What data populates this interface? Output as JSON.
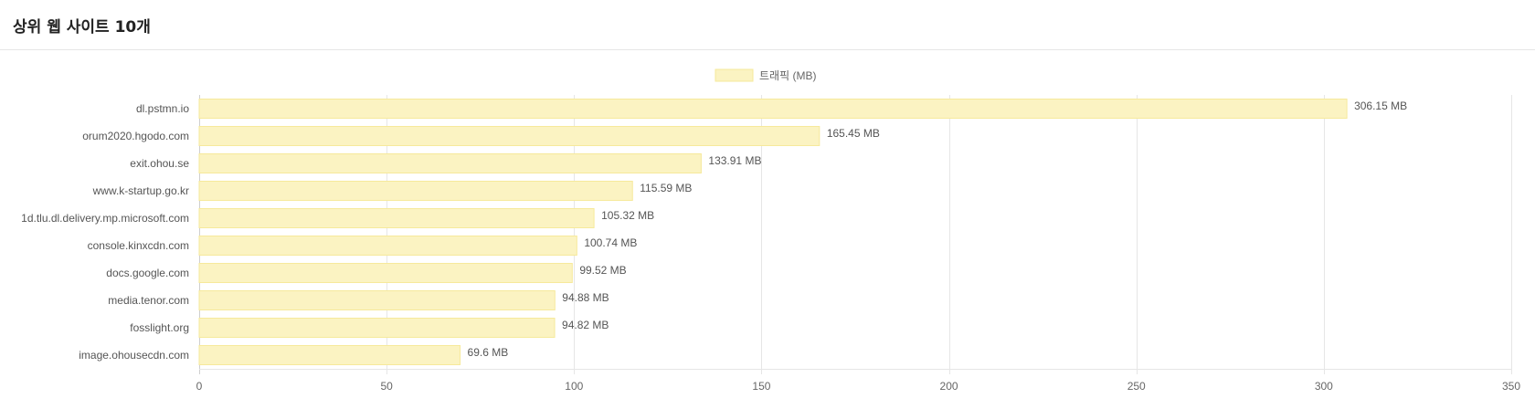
{
  "panel": {
    "title": "상위 웹 사이트 10개"
  },
  "chart_data": {
    "type": "bar",
    "orientation": "horizontal",
    "categories": [
      "dl.pstmn.io",
      "orum2020.hgodo.com",
      "exit.ohou.se",
      "www.k-startup.go.kr",
      "1d.tlu.dl.delivery.mp.microsoft.com",
      "console.kinxcdn.com",
      "docs.google.com",
      "media.tenor.com",
      "fosslight.org",
      "image.ohousecdn.com"
    ],
    "series": [
      {
        "name": "트래픽 (MB)",
        "values": [
          306.15,
          165.45,
          133.91,
          115.59,
          105.32,
          100.74,
          99.52,
          94.88,
          94.82,
          69.6
        ],
        "data_labels": [
          "306.15 MB",
          "165.45 MB",
          "133.91 MB",
          "115.59 MB",
          "105.32 MB",
          "100.74 MB",
          "99.52 MB",
          "94.88 MB",
          "94.82 MB",
          "69.6 MB"
        ],
        "color": "#fbf3c2",
        "border_color": "#f6e99b"
      }
    ],
    "xlim": [
      0,
      350
    ],
    "xticks": [
      0,
      50,
      100,
      150,
      200,
      250,
      300,
      350
    ],
    "grid": true,
    "legend_position": "top-center"
  }
}
